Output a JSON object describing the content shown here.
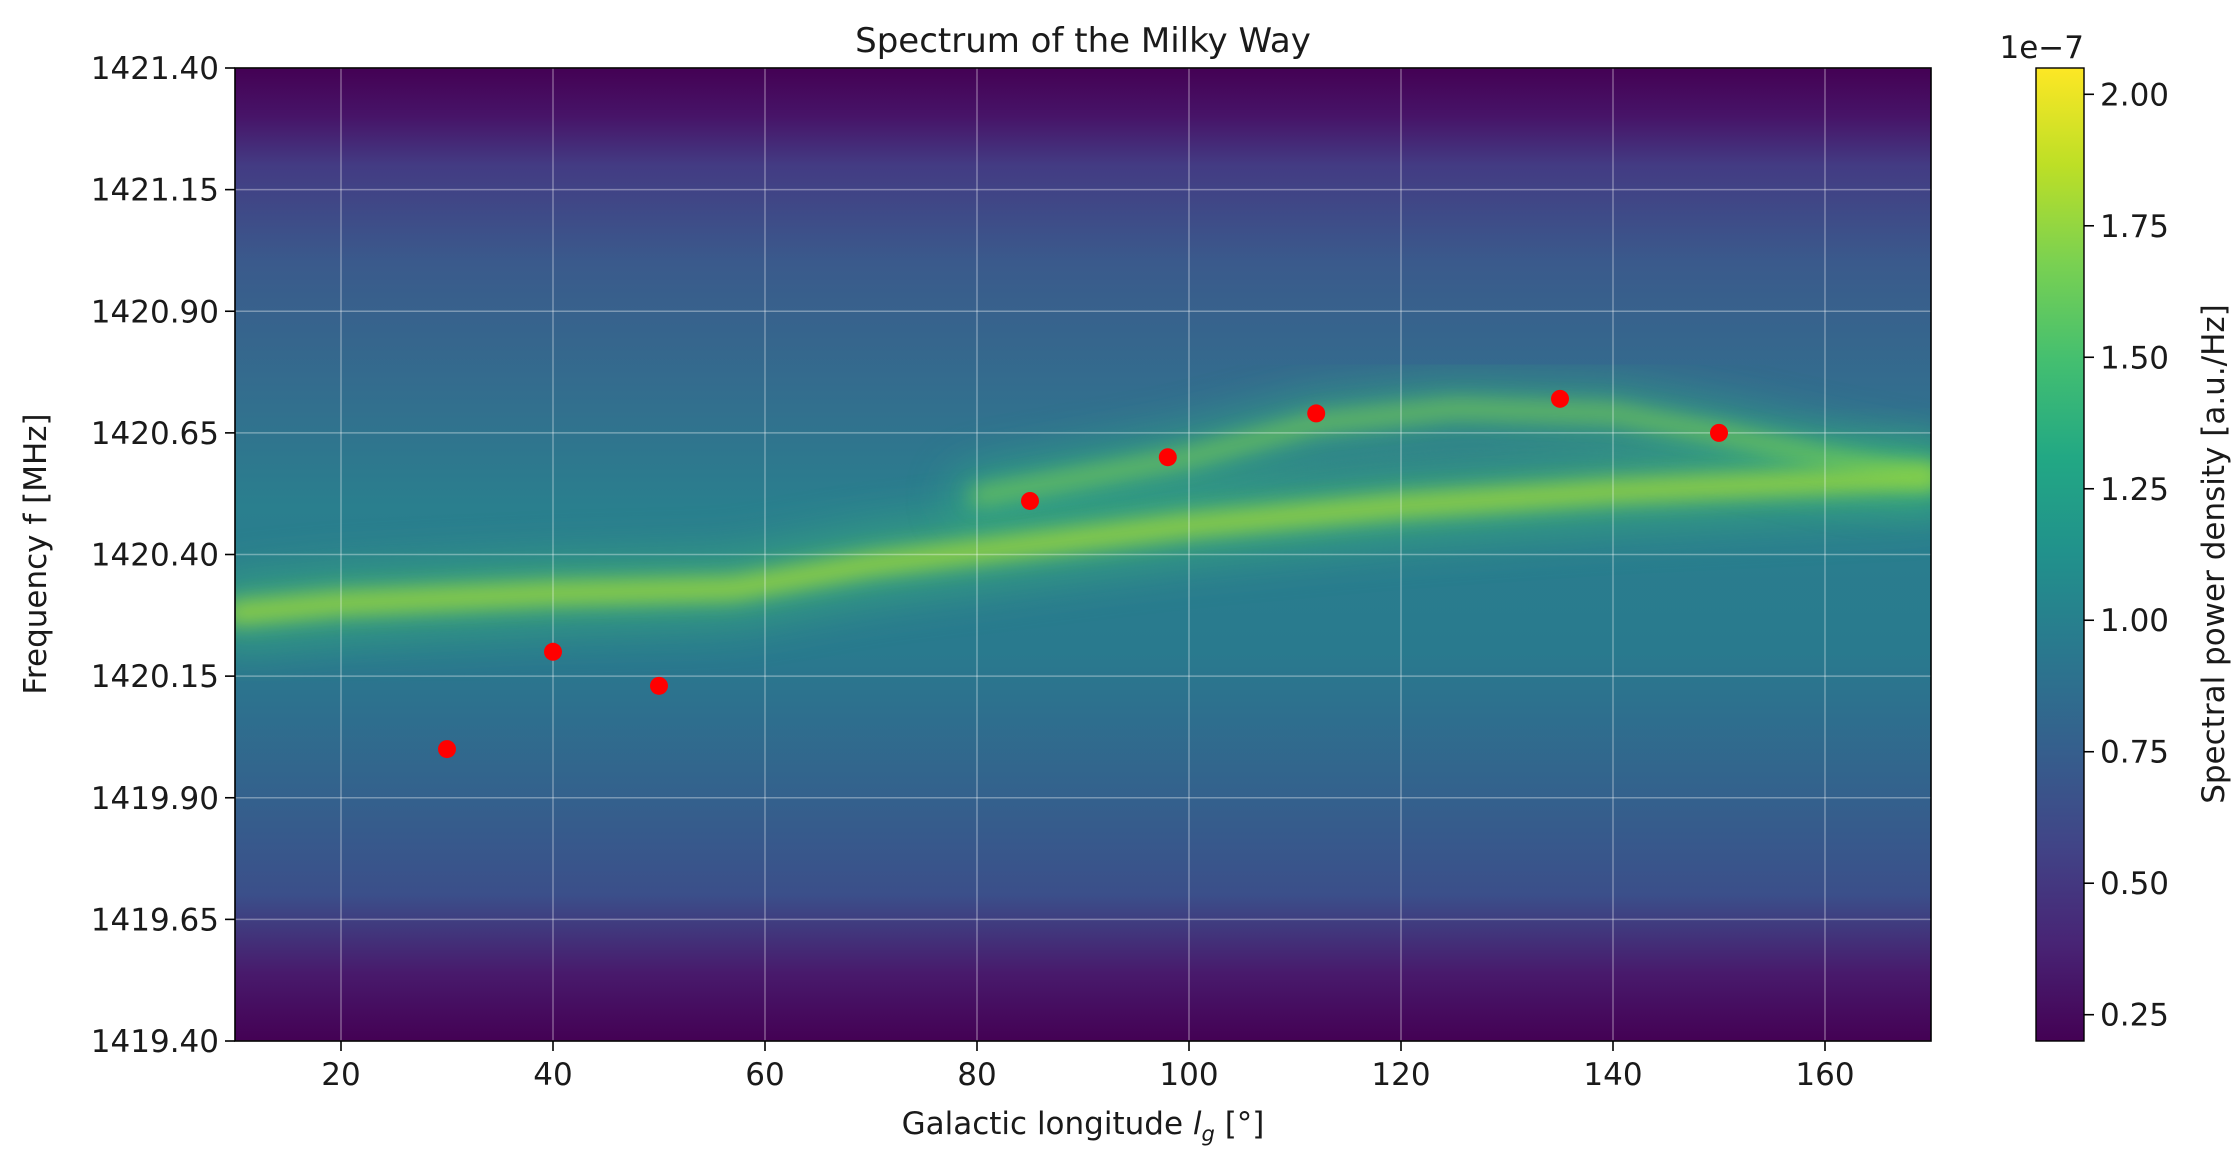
{
  "chart_data": {
    "type": "heatmap",
    "title": "Spectrum of the Milky Way",
    "xlabel_main": "Galactic longitude ",
    "xlabel_var": "l",
    "xlabel_sub": "g",
    "xlabel_unit": " [°]",
    "ylabel": "Frequency f [MHz]",
    "xlim": [
      10,
      170
    ],
    "ylim": [
      1419.4,
      1421.4
    ],
    "xticks": [
      20,
      40,
      60,
      80,
      100,
      120,
      140,
      160
    ],
    "yticks": [
      1419.4,
      1419.65,
      1419.9,
      1420.15,
      1420.4,
      1420.65,
      1420.9,
      1421.15,
      1421.4
    ],
    "ytick_labels": [
      "1419.40",
      "1419.65",
      "1419.90",
      "1420.15",
      "1420.40",
      "1420.65",
      "1420.90",
      "1421.15",
      "1421.40"
    ],
    "grid": true,
    "colormap": "viridis",
    "colorbar": {
      "label": "Spectral power density [a.u./Hz]",
      "offset_text": "1e−7",
      "range": [
        0.2,
        2.05
      ],
      "ticks": [
        0.25,
        0.5,
        0.75,
        1.0,
        1.25,
        1.5,
        1.75,
        2.0
      ],
      "tick_labels": [
        "0.25",
        "0.50",
        "0.75",
        "1.00",
        "1.25",
        "1.50",
        "1.75",
        "2.00"
      ]
    },
    "ridge_peak_frequency": {
      "longitude": [
        10,
        20,
        40,
        57,
        70,
        85,
        100,
        120,
        140,
        160,
        170
      ],
      "frequency": [
        1420.28,
        1420.3,
        1420.32,
        1420.33,
        1420.38,
        1420.42,
        1420.46,
        1420.5,
        1420.53,
        1420.55,
        1420.56
      ]
    },
    "upper_ridge_peak_frequency": {
      "longitude": [
        80,
        100,
        112,
        125,
        140,
        150,
        160,
        170
      ],
      "frequency": [
        1420.52,
        1420.6,
        1420.67,
        1420.7,
        1420.69,
        1420.65,
        1420.6,
        1420.56
      ]
    },
    "series": [
      {
        "type": "scatter",
        "color": "#ff0000",
        "x": [
          30,
          40,
          50,
          85,
          98,
          112,
          135,
          150
        ],
        "y": [
          1420.0,
          1420.2,
          1420.13,
          1420.51,
          1420.6,
          1420.69,
          1420.72,
          1420.65
        ]
      }
    ]
  }
}
